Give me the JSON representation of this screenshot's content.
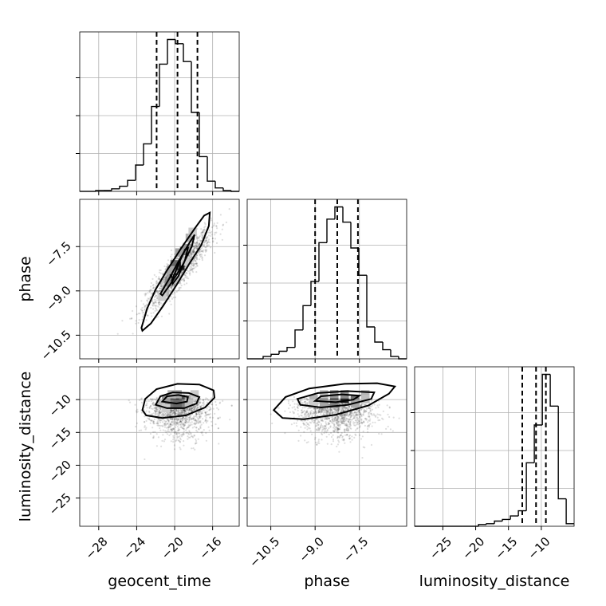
{
  "chart_data": {
    "type": "corner",
    "parameters": [
      "geocent_time",
      "phase",
      "luminosity_distance"
    ],
    "labels": {
      "geocent_time": "geocent_time",
      "phase": "phase",
      "luminosity_distance": "luminosity_distance"
    },
    "ranges": {
      "geocent_time": [
        -30,
        -13.2
      ],
      "phase": [
        -11.3,
        -5.9
      ],
      "luminosity_distance": [
        -29.3,
        -5.0
      ]
    },
    "ticks": {
      "geocent_time": [
        -28,
        -24,
        -20,
        -16
      ],
      "phase": [
        -10.5,
        -9.0,
        -7.5
      ],
      "luminosity_distance": [
        -25,
        -20,
        -15,
        -10
      ]
    },
    "tick_labels": {
      "geocent_time": [
        "−28",
        "−24",
        "−20",
        "−16"
      ],
      "phase": [
        "−10.5",
        "−9.0",
        "−7.5"
      ],
      "luminosity_distance": [
        "−25",
        "−20",
        "−15",
        "−10"
      ]
    },
    "row_ticks": {
      "phase": [
        -10.5,
        -9.0,
        -7.5
      ],
      "luminosity_distance": [
        -25,
        -20,
        -15,
        -10
      ]
    },
    "row_tick_labels": {
      "phase": [
        "−10.5",
        "−9.0",
        "−7.5"
      ],
      "luminosity_distance": [
        "−25",
        "−20",
        "−15",
        "−10"
      ]
    },
    "grid": true,
    "quantiles": {
      "geocent_time": [
        -21.9,
        -19.7,
        -17.6
      ],
      "phase": [
        -9.0,
        -8.25,
        -7.55
      ],
      "luminosity_distance": [
        -12.9,
        -10.8,
        -9.3
      ]
    },
    "histograms": {
      "geocent_time": {
        "edges": [
          -30.0,
          -29.16,
          -28.32,
          -27.48,
          -26.64,
          -25.8,
          -24.96,
          -24.12,
          -23.28,
          -22.44,
          -21.6,
          -20.76,
          -19.92,
          -19.08,
          -18.24,
          -17.4,
          -16.56,
          -15.72,
          -14.88,
          -14.04,
          -13.2
        ],
        "counts": [
          0,
          0,
          1,
          1,
          3,
          6,
          13,
          31,
          56,
          100,
          150,
          179,
          174,
          153,
          93,
          41,
          12,
          4,
          1,
          0
        ]
      },
      "phase": {
        "edges": [
          -11.3,
          -11.03,
          -10.76,
          -10.49,
          -10.22,
          -9.95,
          -9.68,
          -9.41,
          -9.14,
          -8.87,
          -8.6,
          -8.33,
          -8.06,
          -7.79,
          -7.52,
          -7.25,
          -6.98,
          -6.71,
          -6.44,
          -6.17,
          -5.9
        ],
        "counts": [
          0,
          0,
          3,
          6,
          10,
          15,
          38,
          70,
          102,
          153,
          184,
          200,
          180,
          146,
          110,
          42,
          22,
          12,
          3,
          0
        ]
      },
      "luminosity_distance": {
        "edges": [
          -29.3,
          -28.08,
          -26.87,
          -25.65,
          -24.44,
          -23.22,
          -22.0,
          -20.79,
          -19.57,
          -18.36,
          -17.14,
          -15.92,
          -14.71,
          -13.49,
          -12.28,
          -11.06,
          -9.84,
          -8.63,
          -7.41,
          -6.2,
          -5.0
        ],
        "counts": [
          0,
          0,
          0,
          0,
          0,
          0,
          0,
          0,
          2,
          3,
          6,
          8,
          12,
          18,
          74,
          118,
          177,
          140,
          32,
          3
        ]
      }
    },
    "pairs": [
      {
        "x": "geocent_time",
        "y": "phase",
        "center": [
          -19.6,
          -8.3
        ],
        "spread": [
          1.7,
          0.65
        ],
        "correlation": 0.9,
        "contours": [
          [
            [
              -23.5,
              -10.25
            ],
            [
              -22.9,
              -9.6
            ],
            [
              -22.0,
              -8.95
            ],
            [
              -20.8,
              -8.3
            ],
            [
              -19.3,
              -7.55
            ],
            [
              -17.8,
              -6.85
            ],
            [
              -16.9,
              -6.45
            ],
            [
              -16.3,
              -6.35
            ],
            [
              -16.4,
              -6.8
            ],
            [
              -17.2,
              -7.45
            ],
            [
              -18.4,
              -8.05
            ],
            [
              -19.8,
              -8.8
            ],
            [
              -21.2,
              -9.5
            ],
            [
              -22.5,
              -10.1
            ],
            [
              -23.4,
              -10.35
            ]
          ],
          [
            [
              -21.5,
              -9.1
            ],
            [
              -20.6,
              -8.6
            ],
            [
              -19.5,
              -7.95
            ],
            [
              -18.4,
              -7.35
            ],
            [
              -17.9,
              -7.1
            ],
            [
              -18.2,
              -7.5
            ],
            [
              -19.2,
              -8.15
            ],
            [
              -20.4,
              -8.75
            ],
            [
              -21.3,
              -9.15
            ]
          ],
          [
            [
              -20.3,
              -8.65
            ],
            [
              -19.6,
              -8.1
            ],
            [
              -18.9,
              -7.6
            ],
            [
              -18.6,
              -7.55
            ],
            [
              -18.9,
              -7.95
            ],
            [
              -19.6,
              -8.5
            ],
            [
              -20.2,
              -8.75
            ]
          ]
        ],
        "density_cells": [
          {
            "x": -20.1,
            "y": -8.55,
            "level": 0.95
          },
          {
            "x": -19.4,
            "y": -8.15,
            "level": 0.9
          },
          {
            "x": -20.0,
            "y": -8.1,
            "level": 0.6
          },
          {
            "x": -19.0,
            "y": -7.65,
            "level": 0.55
          },
          {
            "x": -20.6,
            "y": -8.7,
            "level": 0.45
          },
          {
            "x": -18.7,
            "y": -7.55,
            "level": 0.4
          },
          {
            "x": -21.0,
            "y": -9.05,
            "level": 0.3
          },
          {
            "x": -18.4,
            "y": -7.2,
            "level": 0.3
          },
          {
            "x": -19.5,
            "y": -7.7,
            "level": 0.35
          },
          {
            "x": -20.4,
            "y": -8.3,
            "level": 0.35
          },
          {
            "x": -21.3,
            "y": -9.2,
            "level": 0.2
          },
          {
            "x": -18.1,
            "y": -7.0,
            "level": 0.2
          },
          {
            "x": -19.8,
            "y": -8.6,
            "level": 0.25
          },
          {
            "x": -18.9,
            "y": -8.0,
            "level": 0.2
          }
        ]
      },
      {
        "x": "geocent_time",
        "y": "luminosity_distance",
        "center": [
          -19.6,
          -10.9
        ],
        "spread": [
          1.7,
          2.3
        ],
        "correlation": 0.0,
        "contours": [
          [
            [
              -23.4,
              -11.6
            ],
            [
              -23.1,
              -9.9
            ],
            [
              -21.9,
              -8.4
            ],
            [
              -19.7,
              -7.6
            ],
            [
              -17.4,
              -7.7
            ],
            [
              -15.9,
              -8.6
            ],
            [
              -15.8,
              -9.7
            ],
            [
              -16.8,
              -11.2
            ],
            [
              -18.8,
              -12.4
            ],
            [
              -21.3,
              -12.8
            ],
            [
              -23.0,
              -12.4
            ]
          ],
          [
            [
              -22.0,
              -10.8
            ],
            [
              -21.5,
              -9.5
            ],
            [
              -20.2,
              -8.9
            ],
            [
              -18.5,
              -9.0
            ],
            [
              -17.4,
              -9.6
            ],
            [
              -17.7,
              -10.6
            ],
            [
              -19.0,
              -11.3
            ],
            [
              -20.8,
              -11.3
            ]
          ],
          [
            [
              -21.3,
              -10.3
            ],
            [
              -20.8,
              -9.5
            ],
            [
              -19.6,
              -9.3
            ],
            [
              -18.6,
              -9.6
            ],
            [
              -18.7,
              -10.3
            ],
            [
              -19.8,
              -10.6
            ]
          ]
        ],
        "density_cells": [
          {
            "x": -19.7,
            "y": -9.9,
            "level": 0.95
          },
          {
            "x": -20.3,
            "y": -9.9,
            "level": 0.85
          },
          {
            "x": -19.1,
            "y": -9.9,
            "level": 0.7
          },
          {
            "x": -20.3,
            "y": -10.6,
            "level": 0.55
          },
          {
            "x": -19.1,
            "y": -10.6,
            "level": 0.5
          },
          {
            "x": -19.7,
            "y": -10.6,
            "level": 0.6
          },
          {
            "x": -20.9,
            "y": -9.9,
            "level": 0.4
          },
          {
            "x": -18.5,
            "y": -9.9,
            "level": 0.35
          },
          {
            "x": -19.7,
            "y": -9.2,
            "level": 0.35
          },
          {
            "x": -20.3,
            "y": -9.2,
            "level": 0.3
          },
          {
            "x": -21.5,
            "y": -10.6,
            "level": 0.25
          },
          {
            "x": -18.5,
            "y": -10.6,
            "level": 0.25
          },
          {
            "x": -17.9,
            "y": -9.2,
            "level": 0.2
          },
          {
            "x": -20.9,
            "y": -11.3,
            "level": 0.2
          }
        ]
      },
      {
        "x": "phase",
        "y": "luminosity_distance",
        "center": [
          -8.3,
          -10.9
        ],
        "spread": [
          0.65,
          2.3
        ],
        "correlation": 0.0,
        "contours": [
          [
            [
              -10.1,
              -12.8
            ],
            [
              -10.4,
              -11.6
            ],
            [
              -10.0,
              -9.6
            ],
            [
              -9.2,
              -8.3
            ],
            [
              -8.0,
              -7.6
            ],
            [
              -6.9,
              -7.5
            ],
            [
              -6.3,
              -8.0
            ],
            [
              -6.5,
              -9.1
            ],
            [
              -7.2,
              -10.9
            ],
            [
              -8.3,
              -12.3
            ],
            [
              -9.4,
              -13.0
            ]
          ],
          [
            [
              -9.5,
              -10.8
            ],
            [
              -9.6,
              -9.9
            ],
            [
              -8.9,
              -9.0
            ],
            [
              -7.9,
              -8.7
            ],
            [
              -7.0,
              -8.9
            ],
            [
              -7.1,
              -9.9
            ],
            [
              -7.9,
              -10.8
            ],
            [
              -8.8,
              -11.2
            ]
          ],
          [
            [
              -9.0,
              -10.2
            ],
            [
              -8.8,
              -9.5
            ],
            [
              -8.1,
              -9.2
            ],
            [
              -7.5,
              -9.4
            ],
            [
              -7.7,
              -10.0
            ],
            [
              -8.3,
              -10.4
            ]
          ]
        ],
        "density_cells": [
          {
            "x": -8.35,
            "y": -9.9,
            "level": 0.95
          },
          {
            "x": -8.0,
            "y": -9.9,
            "level": 0.85
          },
          {
            "x": -8.7,
            "y": -9.9,
            "level": 0.6
          },
          {
            "x": -7.65,
            "y": -9.9,
            "level": 0.55
          },
          {
            "x": -8.35,
            "y": -10.6,
            "level": 0.5
          },
          {
            "x": -8.0,
            "y": -9.2,
            "level": 0.45
          },
          {
            "x": -8.7,
            "y": -10.6,
            "level": 0.35
          },
          {
            "x": -7.65,
            "y": -10.6,
            "level": 0.35
          },
          {
            "x": -9.05,
            "y": -9.9,
            "level": 0.3
          },
          {
            "x": -7.3,
            "y": -9.2,
            "level": 0.3
          },
          {
            "x": -8.35,
            "y": -9.2,
            "level": 0.4
          },
          {
            "x": -9.05,
            "y": -10.6,
            "level": 0.2
          },
          {
            "x": -7.3,
            "y": -9.9,
            "level": 0.25
          },
          {
            "x": -8.7,
            "y": -9.2,
            "level": 0.25
          }
        ]
      }
    ]
  }
}
